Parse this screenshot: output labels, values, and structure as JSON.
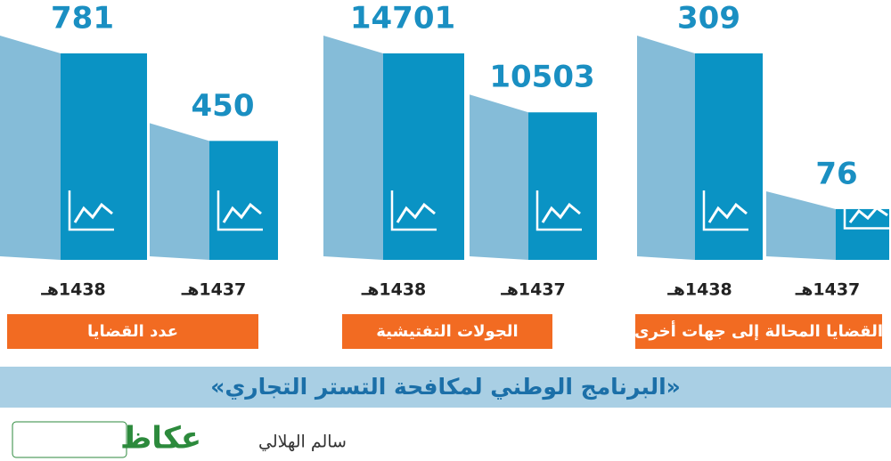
{
  "groups": [
    {
      "title": "عدد القضايا",
      "items": [
        {
          "year": "1438هـ",
          "value": 781
        },
        {
          "year": "1437هـ",
          "value": 450
        }
      ]
    },
    {
      "title": "الجولات التفتيشية",
      "items": [
        {
          "year": "1438هـ",
          "value": 14701
        },
        {
          "year": "1437هـ",
          "value": 10503
        }
      ]
    },
    {
      "title": "القضايا المحالة إلى جهات أخرى",
      "items": [
        {
          "year": "1438هـ",
          "value": 309
        },
        {
          "year": "1437هـ",
          "value": 76
        }
      ]
    }
  ],
  "banner": "«البرنامج الوطني لمكافحة التستر التجاري»",
  "author": "سالم الهلالي",
  "logo": "عكاظ"
}
